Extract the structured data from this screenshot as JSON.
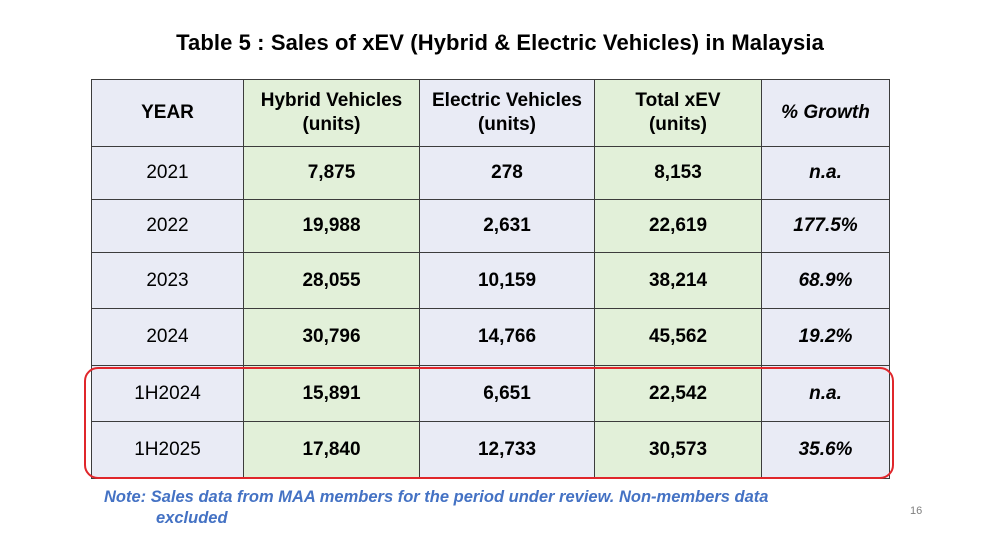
{
  "title": "Table 5 : Sales of xEV (Hybrid & Electric Vehicles) in Malaysia",
  "table": {
    "headers": {
      "year": "YEAR",
      "hybrid_line1": "Hybrid Vehicles",
      "hybrid_line2": "(units)",
      "electric_line1": "Electric Vehicles",
      "electric_line2": "(units)",
      "total_line1": "Total xEV",
      "total_line2": "(units)",
      "growth": "% Growth"
    },
    "rows": [
      {
        "year": "2021",
        "hybrid": "7,875",
        "electric": "278",
        "total": "8,153",
        "growth": "n.a."
      },
      {
        "year": "2022",
        "hybrid": "19,988",
        "electric": "2,631",
        "total": "22,619",
        "growth": "177.5%"
      },
      {
        "year": "2023",
        "hybrid": "28,055",
        "electric": "10,159",
        "total": "38,214",
        "growth": "68.9%"
      },
      {
        "year": "2024",
        "hybrid": "30,796",
        "electric": "14,766",
        "total": "45,562",
        "growth": "19.2%"
      },
      {
        "year": "1H2024",
        "hybrid": "15,891",
        "electric": "6,651",
        "total": "22,542",
        "growth": "n.a."
      },
      {
        "year": "1H2025",
        "hybrid": "17,840",
        "electric": "12,733",
        "total": "30,573",
        "growth": "35.6%"
      }
    ]
  },
  "note": {
    "line1": "Note: Sales data from MAA members for the period under review. Non-members data",
    "line2": "excluded"
  },
  "page_number": "16",
  "colors": {
    "header_blue": "#e9ebf5",
    "column_green": "#e2f0d9",
    "highlight_red": "#e0262b",
    "note_blue": "#4472c4"
  }
}
